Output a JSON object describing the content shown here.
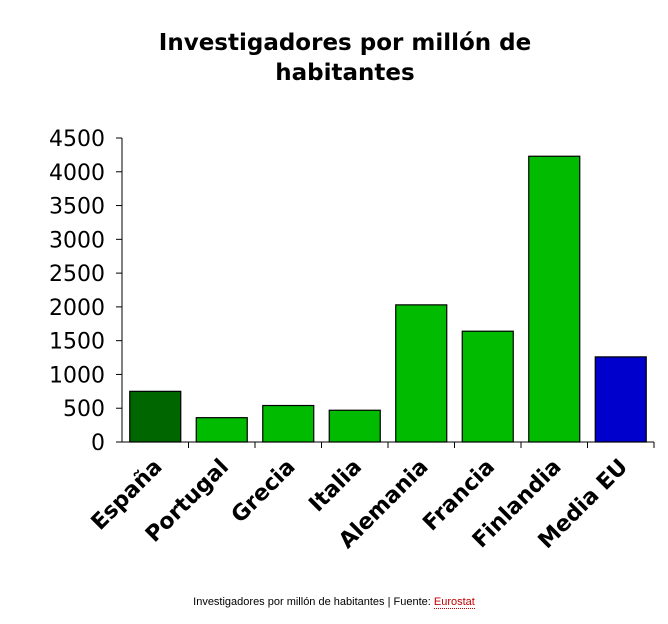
{
  "chart_data": {
    "type": "bar",
    "title": "Investigadores por millón de habitantes",
    "title_lines": [
      "Investigadores por millón de",
      "habitantes"
    ],
    "categories": [
      "España",
      "Portugal",
      "Grecia",
      "Italia",
      "Alemania",
      "Francia",
      "Finlandia",
      "Media EU"
    ],
    "values": [
      750,
      360,
      540,
      470,
      2030,
      1640,
      4230,
      1260
    ],
    "colors": [
      "#006600",
      "#00bb00",
      "#00bb00",
      "#00bb00",
      "#00bb00",
      "#00bb00",
      "#00bb00",
      "#0000cc"
    ],
    "ylim": [
      0,
      4500
    ],
    "yticks": [
      0,
      500,
      1000,
      1500,
      2000,
      2500,
      3000,
      3500,
      4000,
      4500
    ],
    "xlabel": "",
    "ylabel": "",
    "grid": false,
    "legend": "none"
  },
  "caption": {
    "text": "Investigadores por millón de habitantes | Fuente: ",
    "link_label": "Eurostat"
  }
}
